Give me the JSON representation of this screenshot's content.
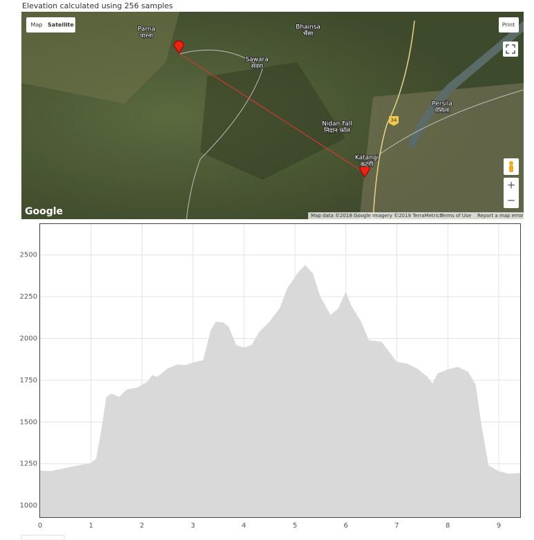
{
  "header": {
    "text": "Elevation calculated using 256 samples"
  },
  "map": {
    "controls": {
      "map": "Map",
      "satellite": "Satellite",
      "print": "Print",
      "zoom_in": "+",
      "zoom_out": "−",
      "logo": "Google"
    },
    "labels": [
      {
        "name": "Parna",
        "local": "पारना"
      },
      {
        "name": "Bhainsa",
        "local": "भैंसा"
      },
      {
        "name": "Sawara",
        "local": "सवरा"
      },
      {
        "name": "Nidan Fall",
        "local": "निदान फॉल"
      },
      {
        "name": "Persila",
        "local": "पेसिला"
      },
      {
        "name": "Katangi",
        "local": "कटंगी"
      }
    ],
    "road_shield": "34",
    "attribution": [
      "Map data ©2018 Google Imagery ©2019 TerraMetrics",
      "Terms of Use",
      "Report a map error"
    ]
  },
  "chart_data": {
    "type": "area",
    "color": "#d9d9d9",
    "grid": true,
    "x": [
      0,
      0.2,
      0.5,
      1.0,
      1.05,
      1.1,
      1.2,
      1.3,
      1.4,
      1.55,
      1.7,
      1.9,
      2.1,
      2.2,
      2.3,
      2.5,
      2.7,
      2.85,
      3.0,
      3.2,
      3.35,
      3.45,
      3.6,
      3.7,
      3.85,
      4.0,
      4.15,
      4.3,
      4.5,
      4.7,
      4.85,
      5.05,
      5.2,
      5.35,
      5.5,
      5.7,
      5.85,
      6.0,
      6.1,
      6.3,
      6.45,
      6.7,
      6.85,
      7.0,
      7.2,
      7.4,
      7.6,
      7.7,
      7.8,
      8.0,
      8.2,
      8.4,
      8.55,
      8.65,
      8.8,
      9.0,
      9.2,
      9.42
    ],
    "values": [
      1210,
      1205,
      1225,
      1255,
      1270,
      1280,
      1450,
      1650,
      1670,
      1650,
      1695,
      1705,
      1740,
      1780,
      1770,
      1820,
      1845,
      1840,
      1855,
      1870,
      2050,
      2100,
      2095,
      2070,
      1960,
      1945,
      1960,
      2040,
      2100,
      2180,
      2300,
      2390,
      2440,
      2390,
      2250,
      2140,
      2180,
      2280,
      2200,
      2100,
      1990,
      1980,
      1920,
      1860,
      1850,
      1820,
      1770,
      1730,
      1790,
      1815,
      1830,
      1800,
      1720,
      1500,
      1240,
      1205,
      1190,
      1195
    ],
    "xlim": [
      0,
      9.42
    ],
    "xticks": [
      0,
      1,
      2,
      3,
      4,
      5,
      6,
      7,
      8,
      9
    ],
    "ylim": [
      930,
      2685
    ],
    "yticks": [
      1000,
      1250,
      1500,
      1750,
      2000,
      2250,
      2500
    ]
  }
}
